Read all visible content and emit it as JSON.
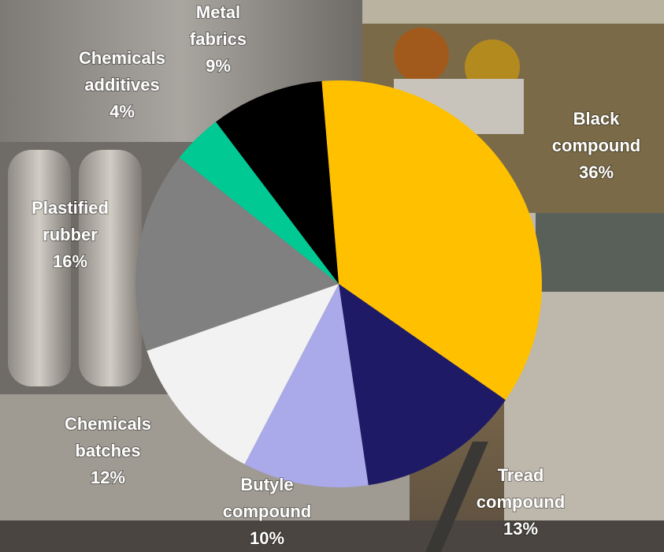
{
  "chart_data": {
    "type": "pie",
    "categories": [
      "Black compound",
      "Tread compound",
      "Butyle compound",
      "Chemicals batches",
      "Plastified rubber",
      "Chemicals additives",
      "Metal fabrics"
    ],
    "values": [
      36,
      13,
      10,
      12,
      16,
      4,
      9
    ],
    "value_labels": [
      "36%",
      "13%",
      "10%",
      "12%",
      "16%",
      "4%",
      "9%"
    ],
    "colors": [
      "#ffc000",
      "#1e1a66",
      "#aaa9e9",
      "#f2f2f2",
      "#808080",
      "#00c994",
      "#000000"
    ]
  }
}
